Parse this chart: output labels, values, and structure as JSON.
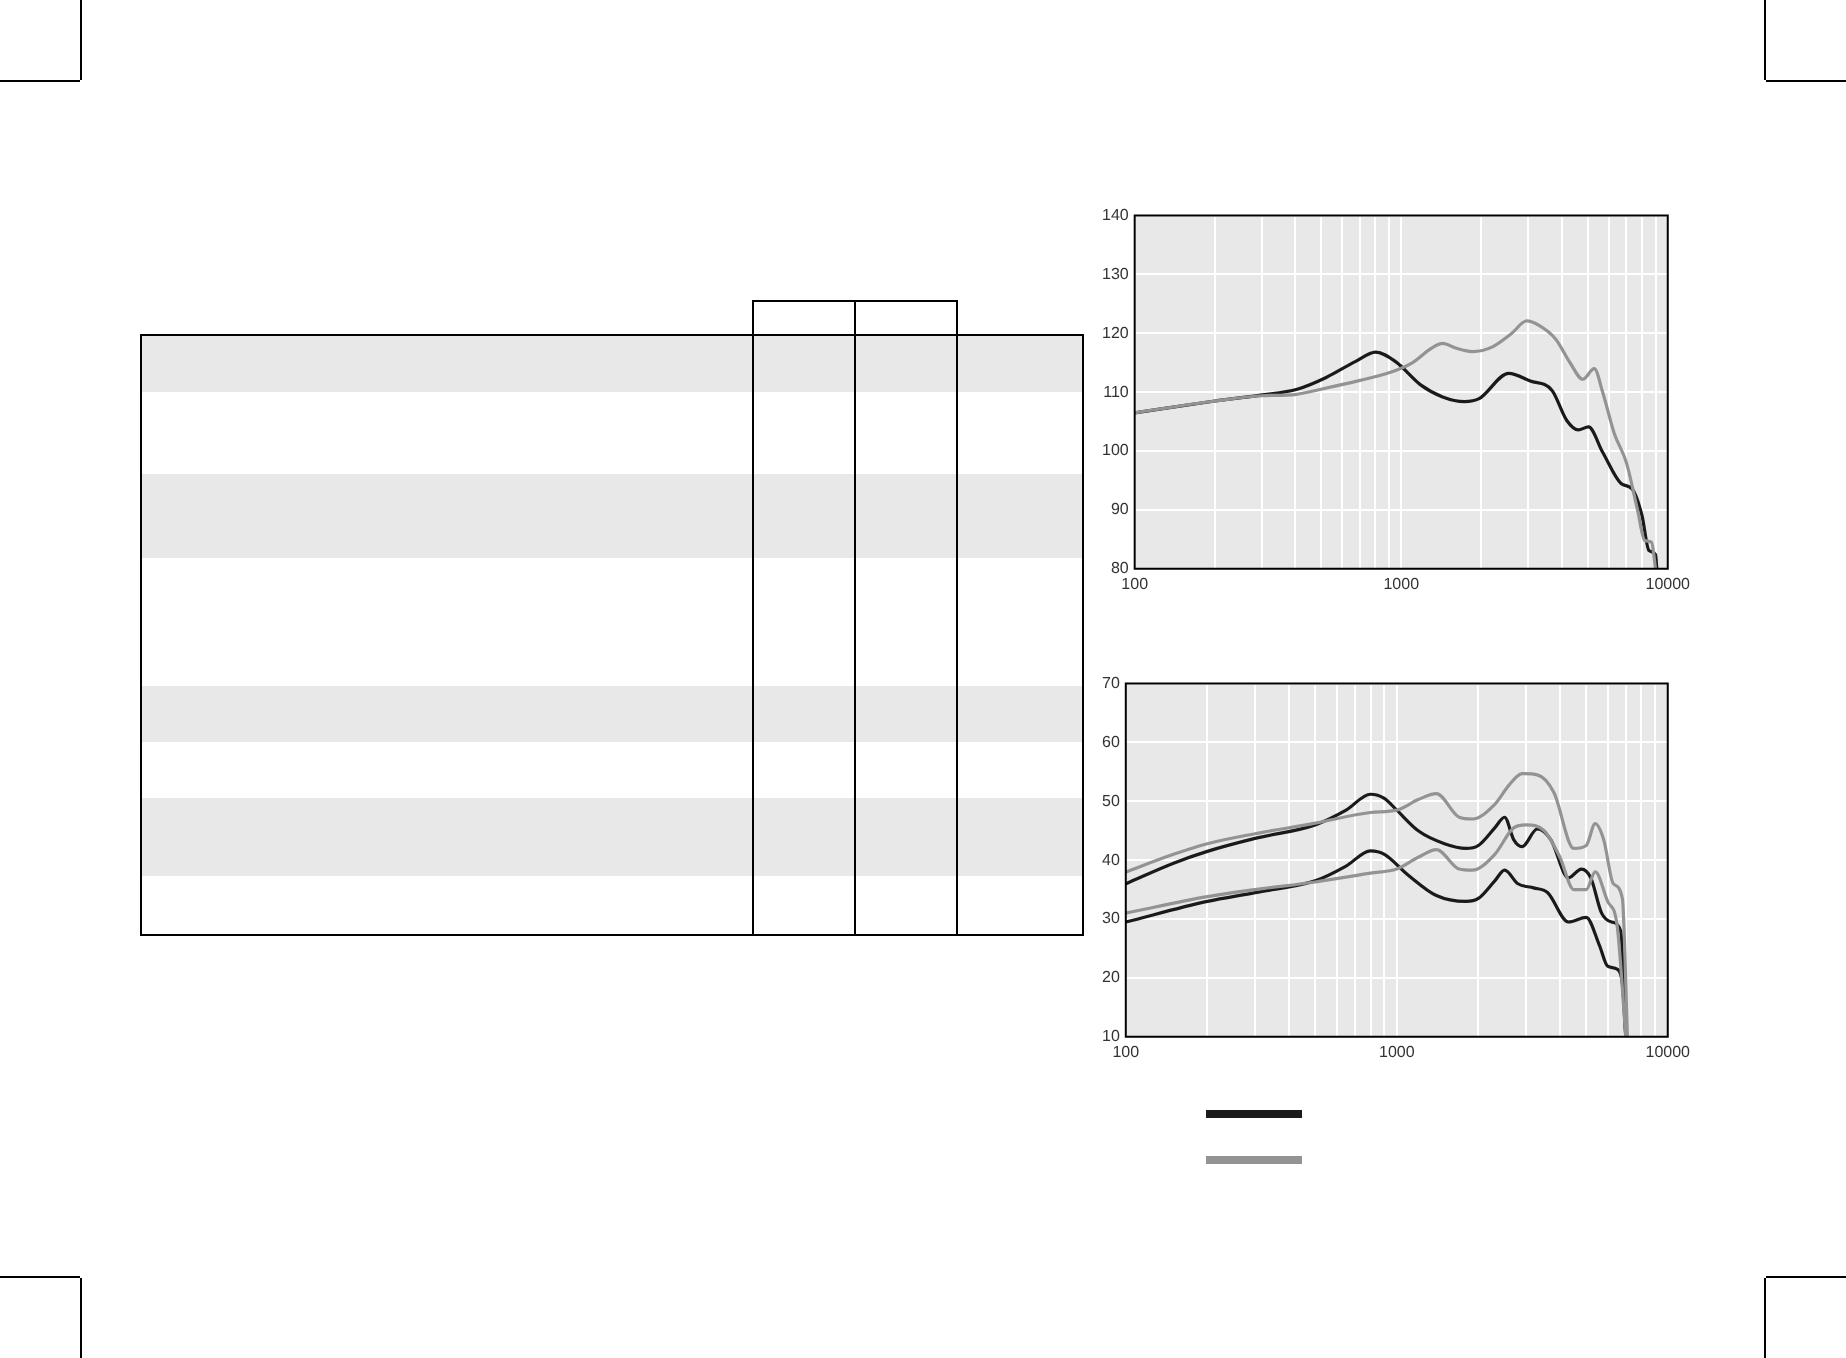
{
  "chart_data": [
    {
      "type": "line",
      "log": "x",
      "grid": true,
      "legend": false,
      "marker": "none",
      "line_style": "solid",
      "xlim": [
        100,
        10000
      ],
      "ylim": [
        80,
        140
      ],
      "xticks": [
        100,
        {
          "value": 200,
          "label": null
        },
        {
          "value": 300,
          "label": null
        },
        {
          "value": 400,
          "label": null
        },
        {
          "value": 500,
          "label": null
        },
        {
          "value": 600,
          "label": null
        },
        {
          "value": 700,
          "label": null
        },
        {
          "value": 800,
          "label": null
        },
        {
          "value": 900,
          "label": null
        },
        1000,
        {
          "value": 2000,
          "label": null
        },
        {
          "value": 3000,
          "label": null
        },
        {
          "value": 4000,
          "label": null
        },
        {
          "value": 5000,
          "label": null
        },
        {
          "value": 6000,
          "label": null
        },
        {
          "value": 7000,
          "label": null
        },
        {
          "value": 8000,
          "label": null
        },
        {
          "value": 9000,
          "label": null
        },
        10000
      ],
      "yticks": [
        80,
        90,
        100,
        110,
        120,
        130,
        140
      ],
      "series": [
        {
          "color": "#939393",
          "x": [
            100,
            200,
            300,
            400,
            500,
            700,
            900,
            1100,
            1300,
            1430,
            1600,
            1850,
            2200,
            2600,
            2950,
            3300,
            3800,
            4300,
            4800,
            5300,
            5700,
            6300,
            7000,
            7700,
            8200,
            8700,
            9000
          ],
          "values": [
            106.5,
            108.5,
            109.4,
            109.6,
            110.5,
            112,
            113.3,
            115,
            117.5,
            118.3,
            117.5,
            116.9,
            117.7,
            120,
            122.1,
            121.3,
            119,
            115,
            112.2,
            114,
            110,
            103,
            98,
            90,
            84.8,
            84.5,
            80
          ]
        },
        {
          "color": "#1a1a1a",
          "x": [
            100,
            200,
            297,
            407,
            523,
            672,
            802,
            952,
            1186,
            1430,
            1727,
            1960,
            2530,
            3050,
            3680,
            4180,
            4620,
            5040,
            5700,
            6680,
            7370,
            8000,
            8500,
            9000,
            9100
          ],
          "values": [
            106.5,
            108.5,
            109.5,
            110.5,
            112.5,
            115.2,
            116.8,
            115.2,
            111.2,
            109.2,
            108.4,
            108.9,
            113.2,
            111.9,
            110.3,
            105.2,
            103.6,
            104.1,
            99.8,
            94.5,
            93.5,
            89.1,
            83.1,
            82.4,
            80
          ]
        }
      ]
    },
    {
      "type": "line",
      "log": "x",
      "grid": true,
      "legend": false,
      "marker": "none",
      "line_style": "solid",
      "xlim": [
        100,
        10000
      ],
      "ylim": [
        10,
        70
      ],
      "xticks": [
        100,
        {
          "value": 200,
          "label": null
        },
        {
          "value": 300,
          "label": null
        },
        {
          "value": 400,
          "label": null
        },
        {
          "value": 500,
          "label": null
        },
        {
          "value": 600,
          "label": null
        },
        {
          "value": 700,
          "label": null
        },
        {
          "value": 800,
          "label": null
        },
        {
          "value": 900,
          "label": null
        },
        1000,
        {
          "value": 2000,
          "label": null
        },
        {
          "value": 3000,
          "label": null
        },
        {
          "value": 4000,
          "label": null
        },
        {
          "value": 5000,
          "label": null
        },
        {
          "value": 6000,
          "label": null
        },
        {
          "value": 7000,
          "label": null
        },
        {
          "value": 8000,
          "label": null
        },
        {
          "value": 9000,
          "label": null
        },
        10000
      ],
      "yticks": [
        10,
        20,
        30,
        40,
        50,
        60,
        70
      ],
      "series": [
        {
          "color": "#939393",
          "x": [
            100,
            150,
            200,
            300,
            500,
            800,
            1000,
            1200,
            1400,
            1700,
            1900,
            2300,
            2600,
            2900,
            3300,
            3800,
            4500,
            5000,
            5400,
            5800,
            6300,
            6800,
            7100
          ],
          "values": [
            38,
            41,
            42.8,
            44.5,
            46.3,
            48.1,
            48.5,
            50.3,
            51.3,
            47.3,
            47,
            49.5,
            52.8,
            54.7,
            54.5,
            51.5,
            42,
            42.5,
            46.2,
            43.5,
            36,
            33.5,
            10
          ]
        },
        {
          "color": "#939393",
          "x": [
            100,
            200,
            300,
            500,
            800,
            1000,
            1200,
            1400,
            1700,
            1900,
            2300,
            2700,
            3000,
            3500,
            4000,
            4500,
            5000,
            5400,
            6000,
            6500,
            7000
          ],
          "values": [
            31,
            33.8,
            35,
            36.3,
            37.8,
            38.5,
            40.5,
            41.8,
            38.5,
            38.3,
            41,
            45.5,
            46,
            45,
            40.5,
            35,
            35,
            38,
            33,
            29,
            10
          ]
        },
        {
          "color": "#1a1a1a",
          "x": [
            100,
            150,
            200,
            300,
            500,
            650,
            800,
            900,
            1000,
            1200,
            1500,
            1800,
            2000,
            2300,
            2500,
            2700,
            2900,
            3300,
            3700,
            4300,
            4800,
            5200,
            5700,
            6200,
            6700,
            7000
          ],
          "values": [
            36,
            39.5,
            41.5,
            43.7,
            46,
            48.5,
            51.2,
            50.5,
            48.5,
            45,
            42.8,
            42,
            42.5,
            45.5,
            47.3,
            43.5,
            42.3,
            45.3,
            43.5,
            37,
            38.5,
            37,
            31,
            29.5,
            28,
            10
          ]
        },
        {
          "color": "#1a1a1a",
          "x": [
            100,
            200,
            300,
            500,
            650,
            800,
            900,
            1100,
            1400,
            1800,
            2000,
            2300,
            2500,
            2800,
            3200,
            3600,
            4300,
            5000,
            5600,
            6000,
            6500,
            6800,
            7000
          ],
          "values": [
            29.5,
            33,
            34.5,
            36.5,
            39,
            41.6,
            41,
            37.5,
            34,
            33,
            33.5,
            36.5,
            38.3,
            36,
            35.3,
            34.5,
            29.5,
            30.3,
            25.5,
            22,
            21.5,
            19,
            10
          ]
        }
      ]
    }
  ]
}
